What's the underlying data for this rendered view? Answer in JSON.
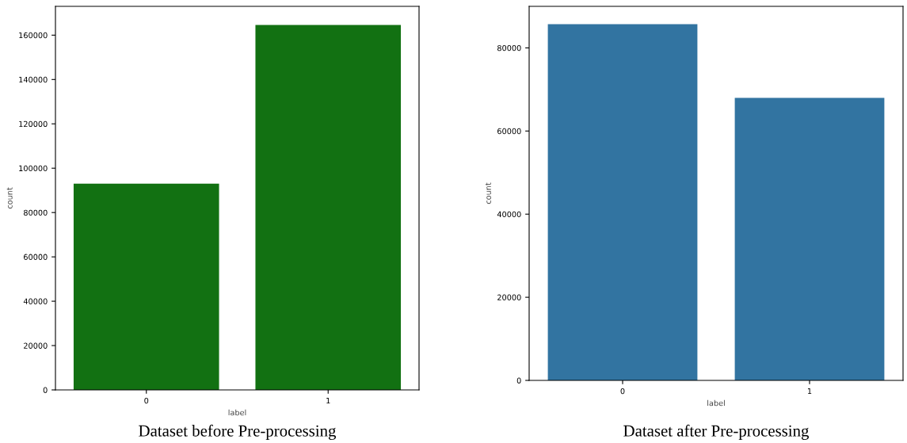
{
  "chart_data": [
    {
      "type": "bar",
      "categories": [
        "0",
        "1"
      ],
      "values": [
        93000,
        164600
      ],
      "color": "#127112",
      "xlabel": "label",
      "ylabel": "count",
      "ylim": [
        0,
        173000
      ],
      "yticks": [
        0,
        20000,
        40000,
        60000,
        80000,
        100000,
        120000,
        140000,
        160000
      ],
      "grid": false,
      "annotations": [
        "Dataset before Pre-processing"
      ]
    },
    {
      "type": "bar",
      "categories": [
        "0",
        "1"
      ],
      "values": [
        85700,
        68000
      ],
      "color": "#3274a1",
      "xlabel": "label",
      "ylabel": "count",
      "ylim": [
        0,
        90000
      ],
      "yticks": [
        0,
        20000,
        40000,
        60000,
        80000
      ],
      "grid": false,
      "annotations": [
        "Dataset after Pre-processing"
      ]
    }
  ]
}
